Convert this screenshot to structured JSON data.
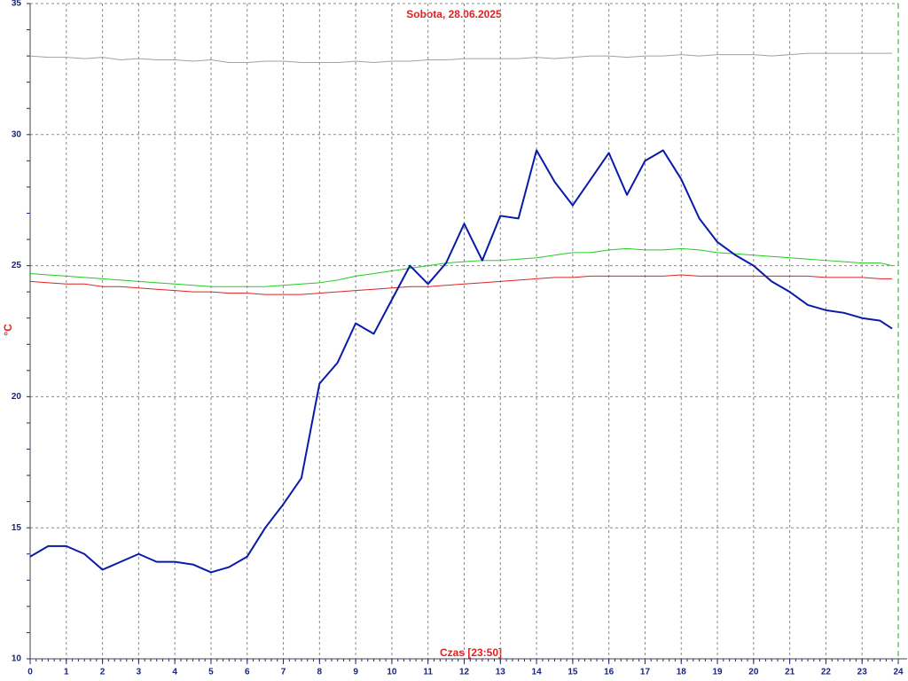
{
  "chart_data": {
    "type": "line",
    "title": "Sobota, 28.06.2025",
    "y_label": "°C",
    "x_label": "Czas [23:50]",
    "x": [
      0,
      0.5,
      1,
      1.5,
      2,
      2.5,
      3,
      3.5,
      4,
      4.5,
      5,
      5.5,
      6,
      6.5,
      7,
      7.5,
      8,
      8.5,
      9,
      9.5,
      10,
      10.5,
      11,
      11.5,
      12,
      12.5,
      13,
      13.5,
      14,
      14.5,
      15,
      15.5,
      16,
      16.5,
      17,
      17.5,
      18,
      18.5,
      19,
      19.5,
      20,
      20.5,
      21,
      21.5,
      22,
      22.5,
      23,
      23.5,
      23.83
    ],
    "series": [
      {
        "color": "#a0a0a0",
        "width": 1,
        "values": [
          33.0,
          32.95,
          32.95,
          32.9,
          32.95,
          32.85,
          32.9,
          32.85,
          32.85,
          32.8,
          32.85,
          32.75,
          32.75,
          32.8,
          32.8,
          32.75,
          32.75,
          32.75,
          32.8,
          32.75,
          32.8,
          32.8,
          32.85,
          32.85,
          32.9,
          32.9,
          32.9,
          32.9,
          32.95,
          32.9,
          32.95,
          33.0,
          33.0,
          32.95,
          33.0,
          33.0,
          33.05,
          33.0,
          33.05,
          33.05,
          33.05,
          33.0,
          33.05,
          33.1,
          33.1,
          33.1,
          33.1,
          33.1,
          33.1
        ]
      },
      {
        "color": "#22cc22",
        "width": 1,
        "values": [
          24.7,
          24.65,
          24.6,
          24.55,
          24.5,
          24.45,
          24.4,
          24.35,
          24.3,
          24.25,
          24.2,
          24.2,
          24.2,
          24.2,
          24.25,
          24.3,
          24.35,
          24.45,
          24.6,
          24.7,
          24.8,
          24.9,
          25.0,
          25.1,
          25.15,
          25.2,
          25.2,
          25.25,
          25.3,
          25.4,
          25.5,
          25.5,
          25.6,
          25.65,
          25.6,
          25.6,
          25.65,
          25.6,
          25.5,
          25.45,
          25.4,
          25.35,
          25.3,
          25.25,
          25.2,
          25.15,
          25.1,
          25.1,
          25.0
        ]
      },
      {
        "color": "#dd2222",
        "width": 1,
        "values": [
          24.4,
          24.35,
          24.3,
          24.3,
          24.2,
          24.2,
          24.15,
          24.1,
          24.05,
          24.0,
          24.0,
          23.95,
          23.95,
          23.9,
          23.9,
          23.9,
          23.95,
          24.0,
          24.05,
          24.1,
          24.15,
          24.2,
          24.2,
          24.25,
          24.3,
          24.35,
          24.4,
          24.45,
          24.5,
          24.55,
          24.55,
          24.6,
          24.6,
          24.6,
          24.6,
          24.6,
          24.65,
          24.6,
          24.6,
          24.6,
          24.6,
          24.6,
          24.6,
          24.6,
          24.55,
          24.55,
          24.55,
          24.5,
          24.5
        ]
      },
      {
        "color": "#0a1aa8",
        "width": 2,
        "values": [
          13.9,
          14.3,
          14.3,
          14.0,
          13.4,
          13.7,
          14.0,
          13.7,
          13.7,
          13.6,
          13.3,
          13.5,
          13.9,
          15.0,
          15.9,
          16.9,
          20.5,
          21.3,
          22.8,
          22.4,
          23.7,
          25.0,
          24.3,
          25.1,
          26.6,
          25.2,
          26.9,
          26.8,
          29.4,
          28.2,
          27.3,
          28.3,
          29.3,
          27.7,
          29.0,
          29.4,
          28.3,
          26.8,
          25.9,
          25.4,
          25.0,
          24.4,
          24.0,
          23.5,
          23.3,
          23.2,
          23.0,
          22.9,
          22.6
        ]
      }
    ],
    "xlim": [
      0,
      24
    ],
    "xticks": [
      0,
      1,
      2,
      3,
      4,
      5,
      6,
      7,
      8,
      9,
      10,
      11,
      12,
      13,
      14,
      15,
      16,
      17,
      18,
      19,
      20,
      21,
      22,
      23,
      24
    ],
    "ylim": [
      10,
      35
    ],
    "yticks": [
      10,
      15,
      20,
      25,
      30,
      35
    ],
    "grid": true
  }
}
